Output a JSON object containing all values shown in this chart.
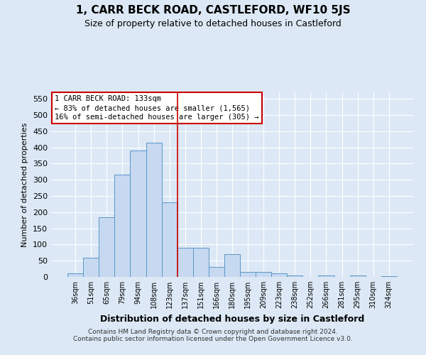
{
  "title": "1, CARR BECK ROAD, CASTLEFORD, WF10 5JS",
  "subtitle": "Size of property relative to detached houses in Castleford",
  "xlabel": "Distribution of detached houses by size in Castleford",
  "ylabel": "Number of detached properties",
  "categories": [
    "36sqm",
    "51sqm",
    "65sqm",
    "79sqm",
    "94sqm",
    "108sqm",
    "123sqm",
    "137sqm",
    "151sqm",
    "166sqm",
    "180sqm",
    "195sqm",
    "209sqm",
    "223sqm",
    "238sqm",
    "252sqm",
    "266sqm",
    "281sqm",
    "295sqm",
    "310sqm",
    "324sqm"
  ],
  "values": [
    10,
    60,
    185,
    315,
    390,
    415,
    230,
    90,
    90,
    30,
    70,
    15,
    15,
    10,
    5,
    0,
    5,
    0,
    5,
    0,
    2
  ],
  "bar_color": "#c6d9f0",
  "bar_edge_color": "#5a96c8",
  "vline_position": 6,
  "ylim": [
    0,
    570
  ],
  "yticks": [
    0,
    50,
    100,
    150,
    200,
    250,
    300,
    350,
    400,
    450,
    500,
    550
  ],
  "annotation_box_text": "1 CARR BECK ROAD: 133sqm\n← 83% of detached houses are smaller (1,565)\n16% of semi-detached houses are larger (305) →",
  "annotation_box_color": "#ffffff",
  "annotation_box_edgecolor": "#cc0000",
  "footer_line1": "Contains HM Land Registry data © Crown copyright and database right 2024.",
  "footer_line2": "Contains public sector information licensed under the Open Government Licence v3.0.",
  "bg_color": "#dce8f5",
  "grid_color": "#ffffff"
}
